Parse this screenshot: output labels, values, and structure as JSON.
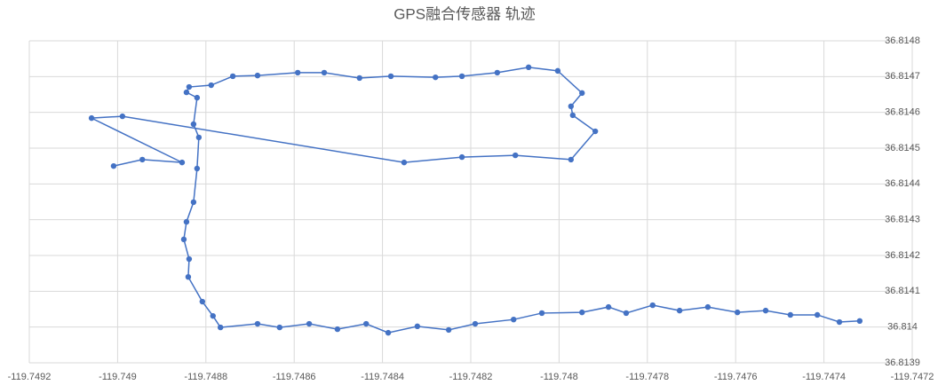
{
  "chart_data": {
    "type": "scatter-line",
    "title": "GPS融合传感器 轨迹",
    "color": "#4472c4",
    "grid": true,
    "xlim": [
      -119.7492,
      -119.7472
    ],
    "ylim": [
      36.8139,
      36.8148
    ],
    "xticks": [
      -119.7492,
      -119.749,
      -119.7488,
      -119.7486,
      -119.7484,
      -119.7482,
      -119.748,
      -119.7478,
      -119.7476,
      -119.7474,
      -119.7472
    ],
    "yticks": [
      36.8139,
      36.814,
      36.8141,
      36.8142,
      36.8143,
      36.8144,
      36.8145,
      36.8146,
      36.8147,
      36.8148
    ],
    "x": [
      -119.749009,
      -119.748944,
      -119.748854,
      -119.749059,
      -119.748989,
      -119.748351,
      -119.74822,
      -119.748099,
      -119.747973,
      -119.747918,
      -119.747969,
      -119.747973,
      -119.747948,
      -119.748003,
      -119.748069,
      -119.74814,
      -119.74822,
      -119.74828,
      -119.748381,
      -119.748452,
      -119.748532,
      -119.748592,
      -119.748683,
      -119.748739,
      -119.748788,
      -119.748838,
      -119.748844,
      -119.74882,
      -119.748828,
      -119.748816,
      -119.74882,
      -119.748828,
      -119.748844,
      -119.74885,
      -119.748838,
      -119.74884,
      -119.748808,
      -119.748784,
      -119.748767,
      -119.748683,
      -119.748633,
      -119.748566,
      -119.748502,
      -119.748437,
      -119.748387,
      -119.748321,
      -119.74825,
      -119.74819,
      -119.748103,
      -119.748039,
      -119.747948,
      -119.747888,
      -119.747848,
      -119.747788,
      -119.747727,
      -119.747663,
      -119.747596,
      -119.747532,
      -119.747476,
      -119.747415,
      -119.747365,
      -119.747319
    ],
    "values": [
      36.81445,
      36.814468,
      36.81446,
      36.814584,
      36.814589,
      36.81446,
      36.814475,
      36.81448,
      36.814468,
      36.814547,
      36.814592,
      36.814617,
      36.814654,
      36.814716,
      36.814726,
      36.814711,
      36.814701,
      36.814698,
      36.814701,
      36.814696,
      36.814711,
      36.814711,
      36.814703,
      36.814701,
      36.814676,
      36.814671,
      36.814656,
      36.814641,
      36.814567,
      36.81453,
      36.814443,
      36.814349,
      36.814294,
      36.814245,
      36.81419,
      36.81414,
      36.814071,
      36.814031,
      36.813999,
      36.814009,
      36.813999,
      36.814009,
      36.813994,
      36.814009,
      36.813984,
      36.814002,
      36.813992,
      36.814009,
      36.814021,
      36.814039,
      36.814041,
      36.814056,
      36.814039,
      36.814061,
      36.814046,
      36.814056,
      36.814041,
      36.814046,
      36.814034,
      36.814034,
      36.814014,
      36.814017
    ]
  }
}
